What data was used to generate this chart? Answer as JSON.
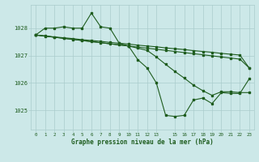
{
  "background_color": "#cce8e8",
  "grid_color": "#aacccc",
  "line_color": "#1e5c1e",
  "marker_color": "#1e5c1e",
  "title": "Graphe pression niveau de la mer (hPa)",
  "title_color": "#1e5c1e",
  "tick_color": "#1e5c1e",
  "ylim": [
    1024.3,
    1028.85
  ],
  "yticks": [
    1025,
    1026,
    1027,
    1028
  ],
  "xlim": [
    -0.5,
    23.5
  ],
  "xtick_positions": [
    0,
    1,
    2,
    3,
    4,
    5,
    6,
    7,
    8,
    9,
    10,
    11,
    12,
    13,
    15,
    16,
    17,
    18,
    19,
    20,
    21,
    22,
    23
  ],
  "xtick_labels": [
    "0",
    "1",
    "2",
    "3",
    "4",
    "5",
    "6",
    "7",
    "8",
    "9",
    "10",
    "11",
    "12",
    "13",
    "15",
    "16",
    "17",
    "18",
    "19",
    "20",
    "21",
    "22",
    "23"
  ],
  "s1_x": [
    0,
    1,
    2,
    3,
    4,
    5,
    6,
    7,
    8,
    9,
    10,
    11,
    12,
    13,
    14,
    15,
    16,
    17,
    18,
    19,
    20,
    21,
    22,
    23
  ],
  "s1_y": [
    1027.75,
    1027.72,
    1027.68,
    1027.65,
    1027.62,
    1027.58,
    1027.55,
    1027.52,
    1027.48,
    1027.45,
    1027.42,
    1027.38,
    1027.35,
    1027.32,
    1027.28,
    1027.25,
    1027.22,
    1027.18,
    1027.15,
    1027.12,
    1027.08,
    1027.05,
    1027.02,
    1026.55
  ],
  "s2_x": [
    0,
    1,
    2,
    3,
    4,
    5,
    6,
    7,
    8,
    9,
    10,
    11,
    12,
    13,
    14,
    15,
    16,
    17,
    18,
    19,
    20,
    21,
    22,
    23
  ],
  "s2_y": [
    1027.75,
    1027.71,
    1027.67,
    1027.63,
    1027.59,
    1027.55,
    1027.51,
    1027.47,
    1027.43,
    1027.39,
    1027.35,
    1027.31,
    1027.27,
    1027.23,
    1027.19,
    1027.15,
    1027.11,
    1027.07,
    1027.03,
    1026.99,
    1026.95,
    1026.91,
    1026.87,
    1026.55
  ],
  "s3_x": [
    0,
    10,
    11,
    12,
    13,
    14,
    15,
    16,
    17,
    18,
    19,
    20,
    21,
    22,
    23
  ],
  "s3_y": [
    1027.75,
    1027.35,
    1027.27,
    1027.19,
    1026.95,
    1026.68,
    1026.42,
    1026.18,
    1025.92,
    1025.72,
    1025.55,
    1025.68,
    1025.68,
    1025.65,
    1025.65
  ],
  "s4_x": [
    0,
    1,
    2,
    3,
    4,
    5,
    6,
    7,
    8,
    9,
    10,
    11,
    12,
    13,
    14,
    15,
    16,
    17,
    18,
    19,
    20,
    21,
    22,
    23
  ],
  "s4_y": [
    1027.75,
    1028.0,
    1028.0,
    1028.05,
    1028.0,
    1028.0,
    1028.55,
    1028.05,
    1028.0,
    1027.45,
    1027.35,
    1026.85,
    1026.55,
    1026.0,
    1024.82,
    1024.78,
    1024.82,
    1025.38,
    1025.45,
    1025.25,
    1025.65,
    1025.62,
    1025.62,
    1026.15
  ]
}
